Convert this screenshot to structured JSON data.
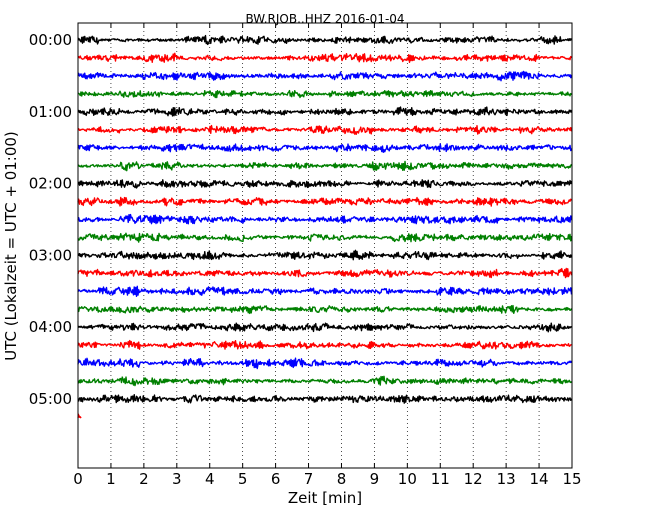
{
  "chart_data": {
    "type": "line",
    "title": "BW.RJOB..HHZ 2016-01-04",
    "xlabel": "Zeit  [min]",
    "ylabel": "UTC (Lokalzeit = UTC + 01:00)",
    "xlim": [
      0,
      15
    ],
    "x_ticks": [
      "0",
      "1",
      "2",
      "3",
      "4",
      "5",
      "6",
      "7",
      "8",
      "9",
      "10",
      "11",
      "12",
      "13",
      "14",
      "15"
    ],
    "y_ticks": [
      "00:00",
      "01:00",
      "02:00",
      "03:00",
      "04:00",
      "05:00"
    ],
    "y_tick_rows": [
      0,
      4,
      8,
      12,
      16,
      20
    ],
    "grid": "vertical dotted lines at each minute",
    "trace_colors": [
      "#000000",
      "#ff0000",
      "#0000ff",
      "#008000"
    ],
    "rows": [
      {
        "start": "00:00",
        "color": "#000000"
      },
      {
        "start": "00:15",
        "color": "#ff0000"
      },
      {
        "start": "00:30",
        "color": "#0000ff"
      },
      {
        "start": "00:45",
        "color": "#008000"
      },
      {
        "start": "01:00",
        "color": "#000000"
      },
      {
        "start": "01:15",
        "color": "#ff0000"
      },
      {
        "start": "01:30",
        "color": "#0000ff"
      },
      {
        "start": "01:45",
        "color": "#008000"
      },
      {
        "start": "02:00",
        "color": "#000000"
      },
      {
        "start": "02:15",
        "color": "#ff0000"
      },
      {
        "start": "02:30",
        "color": "#0000ff"
      },
      {
        "start": "02:45",
        "color": "#008000"
      },
      {
        "start": "03:00",
        "color": "#000000"
      },
      {
        "start": "03:15",
        "color": "#ff0000"
      },
      {
        "start": "03:30",
        "color": "#0000ff"
      },
      {
        "start": "03:45",
        "color": "#008000"
      },
      {
        "start": "04:00",
        "color": "#000000"
      },
      {
        "start": "04:15",
        "color": "#ff0000"
      },
      {
        "start": "04:30",
        "color": "#0000ff"
      },
      {
        "start": "04:45",
        "color": "#008000"
      },
      {
        "start": "05:00",
        "color": "#000000"
      }
    ],
    "partial_row": {
      "start": "05:15",
      "color": "#ff0000",
      "duration_min": 0.1
    }
  }
}
